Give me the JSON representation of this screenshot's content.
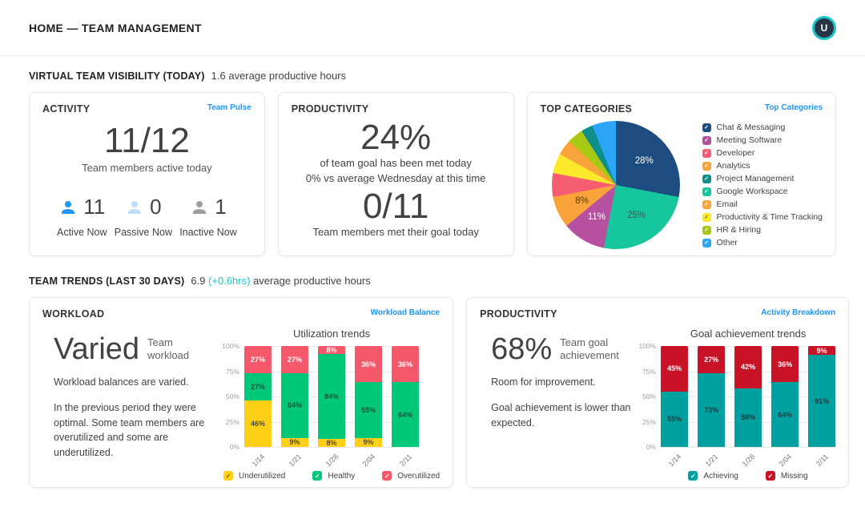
{
  "header": {
    "title": "HOME — TEAM MANAGEMENT",
    "avatar_initial": "U"
  },
  "sections": {
    "visibility": {
      "label": "VIRTUAL TEAM VISIBILITY (TODAY)",
      "detail": "1.6 average productive hours"
    },
    "trends": {
      "label": "TEAM TRENDS (LAST 30 DAYS)",
      "value": "6.9",
      "delta": "(+0.6hrs)",
      "suffix": "average productive hours"
    }
  },
  "activity_card": {
    "title": "ACTIVITY",
    "link": "Team Pulse",
    "big_value": "11/12",
    "big_caption": "Team members active today",
    "stats": [
      {
        "value": "11",
        "label": "Active Now",
        "color": "#2196f3"
      },
      {
        "value": "0",
        "label": "Passive Now",
        "color": "#bbdefb"
      },
      {
        "value": "1",
        "label": "Inactive Now",
        "color": "#9e9e9e"
      }
    ]
  },
  "productivity_card": {
    "title": "PRODUCTIVITY",
    "percent": "24%",
    "line1": "of team goal has been met today",
    "line2": "0% vs average Wednesday at this time",
    "ratio": "0/11",
    "ratio_caption": "Team members met their goal today"
  },
  "categories_card": {
    "title": "TOP CATEGORIES",
    "link": "Top Categories"
  },
  "workload_card": {
    "title": "WORKLOAD",
    "link": "Workload Balance",
    "headline": "Varied",
    "headline_caption": "Team workload",
    "p1": "Workload balances are varied.",
    "p2": "In the previous period they were optimal. Some team members are overutilized and some are underutilized."
  },
  "goal_card": {
    "title": "PRODUCTIVITY",
    "link": "Activity Breakdown",
    "headline": "68%",
    "headline_caption": "Team goal achievement",
    "p1": "Room for improvement.",
    "p2": "Goal achievement is lower than expected."
  },
  "chart_data": [
    {
      "type": "pie",
      "title": "Top Categories",
      "legend_position": "right",
      "slices": [
        {
          "label": "Chat & Messaging",
          "value": 28,
          "color": "#1d4d80",
          "pct_label": "28%",
          "label_color": "#ffffff"
        },
        {
          "label": "Google Workspace",
          "value": 25,
          "color": "#16c79e",
          "pct_label": "25%",
          "label_color": "#3c5a52"
        },
        {
          "label": "Meeting Software",
          "value": 11,
          "color": "#b5519e",
          "pct_label": "11%",
          "label_color": "#ffffff"
        },
        {
          "label": "Analytics",
          "value": 8,
          "color": "#f9a43a",
          "pct_label": "8%",
          "label_color": "#4a3a22"
        },
        {
          "label": "Developer",
          "value": 6,
          "color": "#f75d70"
        },
        {
          "label": "Productivity & Time Tracking",
          "value": 5,
          "color": "#fce92b"
        },
        {
          "label": "Email",
          "value": 4,
          "color": "#f9a43a"
        },
        {
          "label": "HR & Hiring",
          "value": 4,
          "color": "#a8c813"
        },
        {
          "label": "Project Management",
          "value": 3,
          "color": "#0e8f8c"
        },
        {
          "label": "Other",
          "value": 6,
          "color": "#2ba6f7"
        }
      ],
      "legend": [
        {
          "label": "Chat & Messaging",
          "color": "#1d4d80"
        },
        {
          "label": "Meeting Software",
          "color": "#b5519e"
        },
        {
          "label": "Developer",
          "color": "#f75d70"
        },
        {
          "label": "Analytics",
          "color": "#f9a43a"
        },
        {
          "label": "Project Management",
          "color": "#0e8f8c"
        },
        {
          "label": "Google Workspace",
          "color": "#16c79e"
        },
        {
          "label": "Email",
          "color": "#f9a43a"
        },
        {
          "label": "Productivity & Time Tracking",
          "color": "#fce92b"
        },
        {
          "label": "HR & Hiring",
          "color": "#a8c813"
        },
        {
          "label": "Other",
          "color": "#2ba6f7"
        }
      ]
    },
    {
      "type": "bar",
      "stacked": true,
      "title": "Utilization trends",
      "categories": [
        "1/14",
        "1/21",
        "1/28",
        "2/04",
        "2/11"
      ],
      "series": [
        {
          "name": "Underutilized",
          "color": "#fdd017",
          "label_color": "#4a4a4a",
          "values": [
            46,
            9,
            8,
            9,
            0
          ]
        },
        {
          "name": "Healthy",
          "color": "#00c878",
          "label_color": "#1f513b",
          "values": [
            27,
            64,
            84,
            55,
            64
          ]
        },
        {
          "name": "Overutilized",
          "color": "#f4596b",
          "label_color": "#ffffff",
          "values": [
            27,
            27,
            8,
            36,
            36
          ]
        }
      ],
      "ylim": [
        0,
        100
      ],
      "yticks": [
        "0%",
        "25%",
        "50%",
        "75%",
        "100%"
      ],
      "grid": true,
      "legend_position": "bottom"
    },
    {
      "type": "bar",
      "stacked": true,
      "title": "Goal achievement trends",
      "categories": [
        "1/14",
        "1/21",
        "1/28",
        "2/04",
        "2/11"
      ],
      "series": [
        {
          "name": "Achieving",
          "color": "#00a0a0",
          "label_color": "#203c3c",
          "values": [
            55,
            73,
            58,
            64,
            91
          ]
        },
        {
          "name": "Missing",
          "color": "#c81326",
          "label_color": "#ffffff",
          "values": [
            45,
            27,
            42,
            36,
            9
          ]
        }
      ],
      "ylim": [
        0,
        100
      ],
      "yticks": [
        "0%",
        "25%",
        "50%",
        "75%",
        "100%"
      ],
      "grid": true,
      "legend_position": "bottom"
    }
  ]
}
